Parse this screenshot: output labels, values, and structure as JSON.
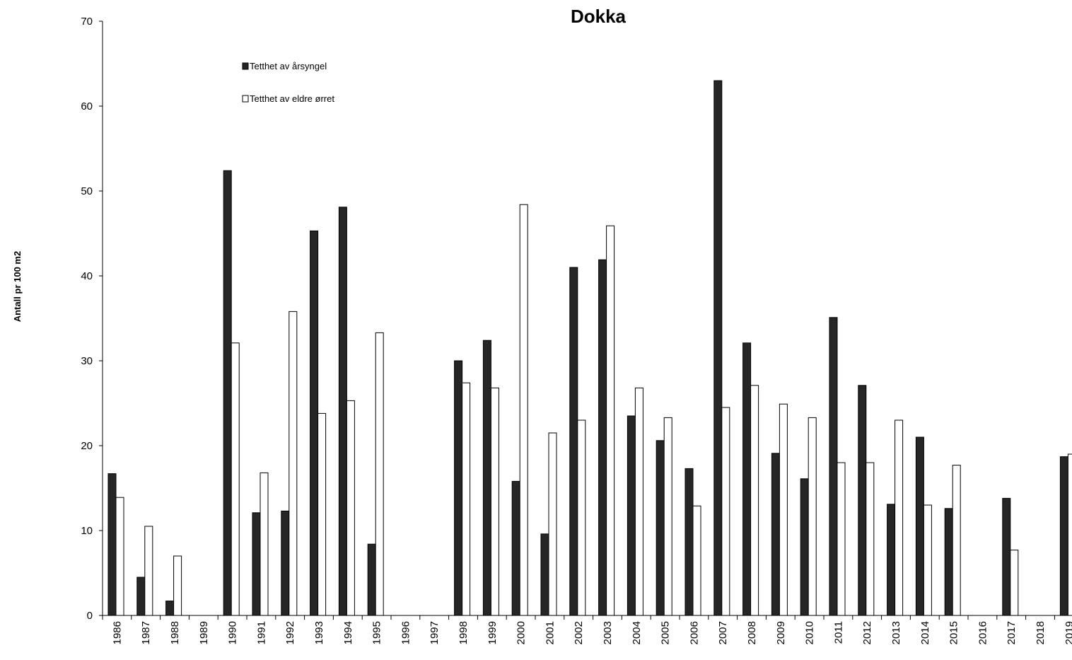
{
  "chart_data": {
    "type": "bar",
    "title": "Dokka",
    "xlabel": "",
    "ylabel": "Antall pr 100 m2",
    "ylim": [
      0,
      70
    ],
    "yticks": [
      0,
      10,
      20,
      30,
      40,
      50,
      60,
      70
    ],
    "grid": false,
    "legend_position": "top-left",
    "categories": [
      "1986",
      "1987",
      "1988",
      "1989",
      "1990",
      "1991",
      "1992",
      "1993",
      "1994",
      "1995",
      "1996",
      "1997",
      "1998",
      "1999",
      "2000",
      "2001",
      "2002",
      "2003",
      "2004",
      "2005",
      "2006",
      "2007",
      "2008",
      "2009",
      "2010",
      "2011",
      "2012",
      "2013",
      "2014",
      "2015",
      "2016",
      "2017",
      "2018",
      "2019"
    ],
    "series": [
      {
        "name": "Tetthet av årsyngel",
        "color": "#262626",
        "values": [
          16.7,
          4.5,
          1.7,
          null,
          52.4,
          12.1,
          12.3,
          45.3,
          48.1,
          8.4,
          null,
          null,
          30.0,
          32.4,
          15.8,
          9.6,
          41.0,
          41.9,
          23.5,
          20.6,
          17.3,
          63.0,
          32.1,
          19.1,
          16.1,
          35.1,
          27.1,
          13.1,
          21.0,
          12.6,
          null,
          13.8,
          null,
          18.7
        ]
      },
      {
        "name": "Tetthet av eldre ørret",
        "color": "#ffffff",
        "values": [
          13.9,
          10.5,
          7.0,
          null,
          32.1,
          16.8,
          35.8,
          23.8,
          25.3,
          33.3,
          null,
          null,
          27.4,
          26.8,
          48.4,
          21.5,
          23.0,
          45.9,
          26.8,
          23.3,
          12.9,
          24.5,
          27.1,
          24.9,
          23.3,
          18.0,
          18.0,
          23.0,
          13.0,
          17.7,
          null,
          7.7,
          null,
          19.0
        ]
      }
    ]
  }
}
